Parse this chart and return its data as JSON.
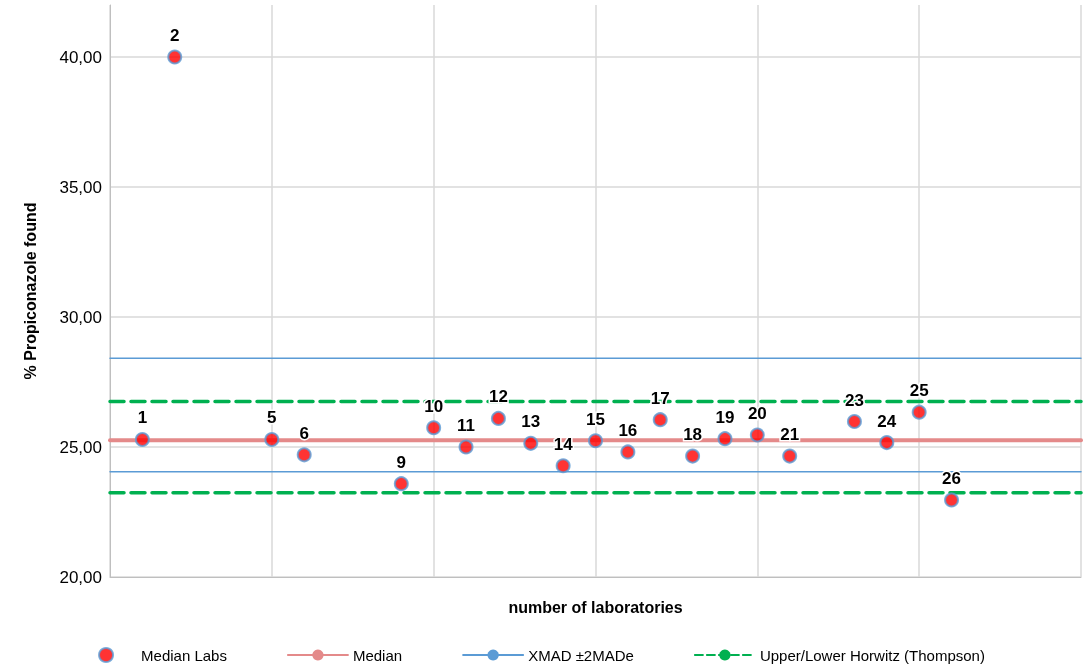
{
  "chart_data": {
    "type": "scatter",
    "xlabel": "number of laboratories",
    "ylabel": "% Propiconazole found",
    "categories": [
      null,
      null,
      null,
      null,
      null,
      null,
      null,
      null,
      null,
      null,
      null,
      null,
      null,
      null,
      null,
      null,
      null,
      null,
      null,
      null,
      null,
      null,
      null,
      null,
      null,
      null,
      null,
      null,
      null,
      null,
      null
    ],
    "ylim": [
      20,
      42
    ],
    "yticks": [
      {
        "value": 20,
        "label": "20,00"
      },
      {
        "value": 25,
        "label": "25,00"
      },
      {
        "value": 30,
        "label": "30,00"
      },
      {
        "value": 35,
        "label": "35,00"
      },
      {
        "value": 40,
        "label": "40,00"
      }
    ],
    "tick_labels": "y",
    "grid": true,
    "legend": "bottom",
    "marker": "circle",
    "series": [
      {
        "name": "Median Labs",
        "color": "#ff0000",
        "values": [
          null,
          25.29,
          40.0,
          null,
          null,
          25.29,
          24.7,
          null,
          null,
          23.59,
          25.74,
          25.0,
          26.1,
          25.14,
          24.28,
          25.24,
          24.81,
          26.05,
          24.65,
          25.32,
          25.46,
          24.65,
          null,
          25.98,
          25.17,
          26.34,
          22.96,
          null,
          null,
          null,
          null
        ]
      },
      {
        "name": "Median",
        "type": "line",
        "color": "#e48a8a",
        "line_style": "solid",
        "marker": "none",
        "values": [
          25.26,
          25.26,
          25.26,
          25.26,
          25.26,
          25.26,
          25.26,
          25.26,
          25.26,
          25.26,
          25.26,
          25.26,
          25.26,
          25.26,
          25.26,
          25.26,
          25.26,
          25.26,
          25.26,
          25.26,
          25.26,
          25.26,
          25.26,
          25.26,
          25.26,
          25.26,
          25.26,
          25.26,
          25.26,
          25.26,
          25.26
        ]
      },
      {
        "name": "XMAD ±2MADe",
        "type": "line",
        "color": "#5b9bd5",
        "line_style": "solid",
        "marker": "none",
        "values": [
          28.41,
          28.41,
          28.41,
          28.41,
          28.41,
          28.41,
          28.41,
          28.41,
          28.41,
          28.41,
          28.41,
          28.41,
          28.41,
          28.41,
          28.41,
          28.41,
          28.41,
          28.41,
          28.41,
          28.41,
          28.41,
          28.41,
          28.41,
          28.41,
          28.41,
          28.41,
          28.41,
          28.41,
          28.41,
          28.41,
          28.41
        ]
      },
      {
        "type": "line",
        "color": "#5b9bd5",
        "line_style": "solid",
        "marker": "none",
        "values": [
          24.05,
          24.05,
          24.05,
          24.05,
          24.05,
          24.05,
          24.05,
          24.05,
          24.05,
          24.05,
          24.05,
          24.05,
          24.05,
          24.05,
          24.05,
          24.05,
          24.05,
          24.05,
          24.05,
          24.05,
          24.05,
          24.05,
          24.05,
          24.05,
          24.05,
          24.05,
          24.05,
          24.05,
          24.05,
          24.05,
          24.05
        ]
      },
      {
        "name": "Upper/Lower Horwitz (Thompson)",
        "type": "line",
        "color": "#00b050",
        "line_style": "dashed",
        "marker": "none",
        "values": [
          26.75,
          26.75,
          26.75,
          26.75,
          26.75,
          26.75,
          26.75,
          26.75,
          26.75,
          26.75,
          26.75,
          26.75,
          26.75,
          26.75,
          26.75,
          26.75,
          26.75,
          26.75,
          26.75,
          26.75,
          26.75,
          26.75,
          26.75,
          26.75,
          26.75,
          26.75,
          26.75,
          26.75,
          26.75,
          26.75,
          26.75
        ]
      },
      {
        "type": "line",
        "color": "#00b050",
        "line_style": "dashed",
        "marker": "none",
        "values": [
          23.24,
          23.24,
          23.24,
          23.24,
          23.24,
          23.24,
          23.24,
          23.24,
          23.24,
          23.24,
          23.24,
          23.24,
          23.24,
          23.24,
          23.24,
          23.24,
          23.24,
          23.24,
          23.24,
          23.24,
          23.24,
          23.24,
          23.24,
          23.24,
          23.24,
          23.24,
          23.24,
          23.24,
          23.24,
          23.24,
          23.24
        ]
      }
    ],
    "annotations": [
      {
        "text": "1",
        "y": 25.29
      },
      {
        "text": "2",
        "y": 40.0
      },
      {
        "text": "5",
        "y": 25.29
      },
      {
        "text": "6",
        "y": 24.7
      },
      {
        "text": "9",
        "y": 23.59
      },
      {
        "text": "10",
        "y": 25.74
      },
      {
        "text": "11",
        "y": 25.0
      },
      {
        "text": "12",
        "y": 26.1
      },
      {
        "text": "13",
        "y": 25.14
      },
      {
        "text": "14",
        "y": 24.28
      },
      {
        "text": "15",
        "y": 25.24
      },
      {
        "text": "16",
        "y": 24.81
      },
      {
        "text": "17",
        "y": 26.05
      },
      {
        "text": "18",
        "y": 24.65
      },
      {
        "text": "19",
        "y": 25.32
      },
      {
        "text": "20",
        "y": 25.46
      },
      {
        "text": "21",
        "y": 24.65
      },
      {
        "text": "23",
        "y": 25.98
      },
      {
        "text": "24",
        "y": 25.17
      },
      {
        "text": "25",
        "y": 26.34
      },
      {
        "text": "26",
        "y": 22.96
      }
    ]
  }
}
